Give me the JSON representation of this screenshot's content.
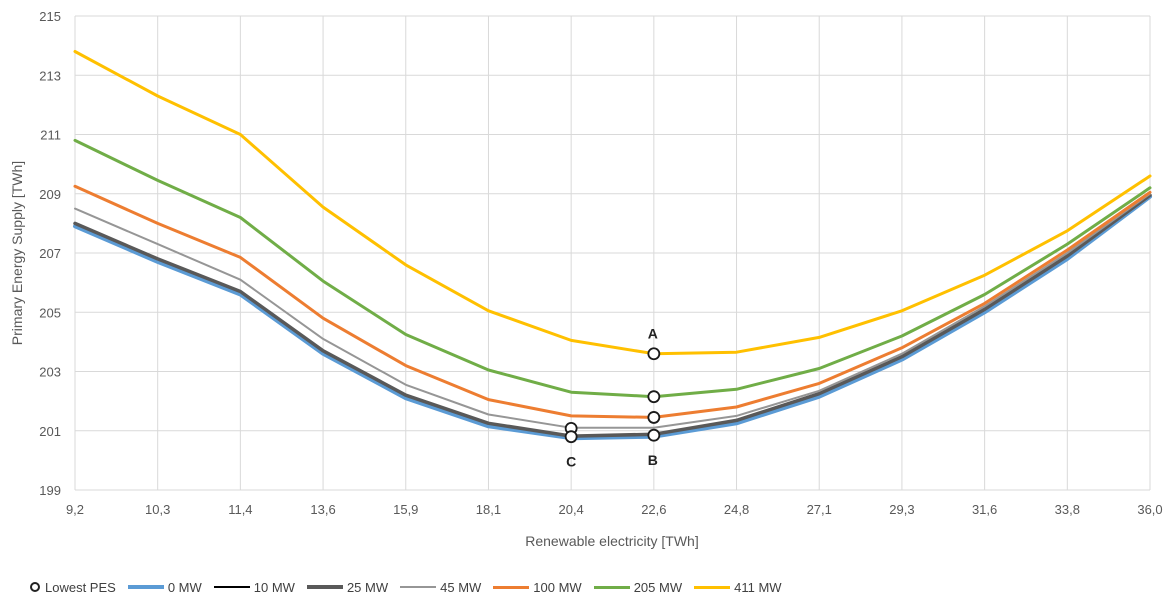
{
  "chart_data": {
    "type": "line",
    "xlabel": "Renewable electricity [TWh]",
    "ylabel": "Primary Energy Supply [TWh]",
    "categories": [
      "9,2",
      "10,3",
      "11,4",
      "13,6",
      "15,9",
      "18,1",
      "20,4",
      "22,6",
      "24,8",
      "27,1",
      "29,3",
      "31,6",
      "33,8",
      "36,0"
    ],
    "ylim": [
      199,
      215
    ],
    "yticks": [
      "199",
      "201",
      "203",
      "205",
      "207",
      "209",
      "211",
      "213",
      "215"
    ],
    "grid": "vertical and horizontal",
    "legend_position": "bottom",
    "marker_legend": "Lowest PES",
    "series": [
      {
        "name": "0 MW",
        "color": "#5B9BD5",
        "width": 4,
        "values": [
          207.9,
          206.7,
          205.6,
          203.6,
          202.1,
          201.15,
          200.75,
          200.8,
          201.25,
          202.15,
          203.4,
          205.0,
          206.8,
          208.9
        ]
      },
      {
        "name": "10 MW",
        "color": "#000000",
        "width": 1.6,
        "values": [
          208.0,
          206.8,
          205.7,
          203.7,
          202.2,
          201.25,
          200.82,
          200.88,
          201.35,
          202.25,
          203.5,
          205.1,
          206.9,
          208.95
        ]
      },
      {
        "name": "25 MW",
        "color": "#595959",
        "width": 3.5,
        "values": [
          208.0,
          206.8,
          205.7,
          203.7,
          202.2,
          201.25,
          200.82,
          200.88,
          201.35,
          202.25,
          203.5,
          205.1,
          206.9,
          208.95
        ]
      },
      {
        "name": "45 MW",
        "color": "#969696",
        "width": 2,
        "values": [
          208.5,
          207.3,
          206.1,
          204.1,
          202.55,
          201.55,
          201.1,
          201.1,
          201.5,
          202.35,
          203.6,
          205.2,
          207.0,
          209.0
        ]
      },
      {
        "name": "100 MW",
        "color": "#ED7D31",
        "width": 3,
        "values": [
          209.25,
          208.0,
          206.85,
          204.8,
          203.2,
          202.05,
          201.5,
          201.45,
          201.8,
          202.6,
          203.8,
          205.3,
          207.1,
          209.05
        ]
      },
      {
        "name": "205 MW",
        "color": "#70AD47",
        "width": 3,
        "values": [
          210.8,
          209.45,
          208.2,
          206.05,
          204.25,
          203.05,
          202.3,
          202.15,
          202.4,
          203.1,
          204.2,
          205.6,
          207.3,
          209.2
        ]
      },
      {
        "name": "411 MW",
        "color": "#FFC000",
        "width": 3,
        "values": [
          213.8,
          212.3,
          211.0,
          208.55,
          206.6,
          205.05,
          204.05,
          203.6,
          203.65,
          204.15,
          205.05,
          206.25,
          207.75,
          209.6
        ]
      }
    ],
    "lowest_points": [
      {
        "x": "20,4",
        "y": 201.08
      },
      {
        "x": "20,4",
        "y": 200.8
      },
      {
        "x": "22,6",
        "y": 200.85
      },
      {
        "x": "22,6",
        "y": 201.45
      },
      {
        "x": "22,6",
        "y": 202.15
      },
      {
        "x": "22,6",
        "y": 203.6
      }
    ],
    "annotations": [
      {
        "text": "A",
        "x": "22,6",
        "y": 203.6,
        "anchor": "above"
      },
      {
        "text": "B",
        "x": "22,6",
        "y": 200.85,
        "anchor": "below"
      },
      {
        "text": "C",
        "x": "20,4",
        "y": 200.8,
        "anchor": "below"
      }
    ]
  }
}
